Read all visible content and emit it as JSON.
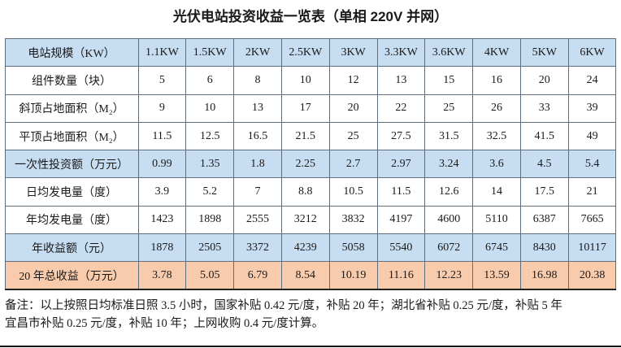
{
  "page": {
    "title": "光伏电站投资收益一览表（单相 220V 并网）"
  },
  "colors": {
    "header_row_bg": "#c7ddf2",
    "highlight_blue_bg": "#c7ddf2",
    "highlight_orange_bg": "#f8cbad",
    "border": "#5f6e7d",
    "text": "#1a1a1a"
  },
  "chart_data": {
    "type": "table",
    "title": "光伏电站投资收益一览表（单相 220V 并网）",
    "header": {
      "label": "电站规模（KW）",
      "columns": [
        "1.1KW",
        "1.5KW",
        "2KW",
        "2.5KW",
        "3KW",
        "3.3KW",
        "3.6KW",
        "4KW",
        "5KW",
        "6KW"
      ]
    },
    "rows": [
      {
        "label": "组件数量（块）",
        "highlight": "none",
        "values": [
          "5",
          "6",
          "8",
          "10",
          "12",
          "13",
          "15",
          "16",
          "20",
          "24"
        ]
      },
      {
        "label": "斜顶占地面积（M₂）",
        "highlight": "none",
        "values": [
          "9",
          "10",
          "13",
          "17",
          "20",
          "22",
          "25",
          "26",
          "33",
          "39"
        ]
      },
      {
        "label": "平顶占地面积（M₂）",
        "highlight": "none",
        "values": [
          "11.5",
          "12.5",
          "16.5",
          "21.5",
          "25",
          "27.5",
          "31.5",
          "32.5",
          "41.5",
          "49"
        ]
      },
      {
        "label": "一次性投资额（万元）",
        "highlight": "blue",
        "values": [
          "0.99",
          "1.35",
          "1.8",
          "2.25",
          "2.7",
          "2.97",
          "3.24",
          "3.6",
          "4.5",
          "5.4"
        ]
      },
      {
        "label": "日均发电量（度）",
        "highlight": "none",
        "values": [
          "3.9",
          "5.2",
          "7",
          "8.8",
          "10.5",
          "11.5",
          "12.6",
          "14",
          "17.5",
          "21"
        ]
      },
      {
        "label": "年均发电量（度）",
        "highlight": "none",
        "values": [
          "1423",
          "1898",
          "2555",
          "3212",
          "3832",
          "4197",
          "4600",
          "5110",
          "6387",
          "7665"
        ]
      },
      {
        "label": "年收益额（元）",
        "highlight": "blue",
        "values": [
          "1878",
          "2505",
          "3372",
          "4239",
          "5058",
          "5540",
          "6072",
          "6745",
          "8430",
          "10117"
        ]
      },
      {
        "label": "20 年总收益（万元）",
        "highlight": "orange",
        "values": [
          "3.78",
          "5.05",
          "6.79",
          "8.54",
          "10.19",
          "11.16",
          "12.23",
          "13.59",
          "16.98",
          "20.38"
        ]
      }
    ]
  },
  "notes": {
    "line1": "备注：以上按照日均标准日照 3.5 小时，国家补贴 0.42 元/度，补贴 20 年；湖北省补贴 0.25 元/度，补贴 5 年",
    "line2": "宜昌市补贴 0.25 元/度，补贴 10 年；上网收购 0.4 元/度计算。"
  }
}
